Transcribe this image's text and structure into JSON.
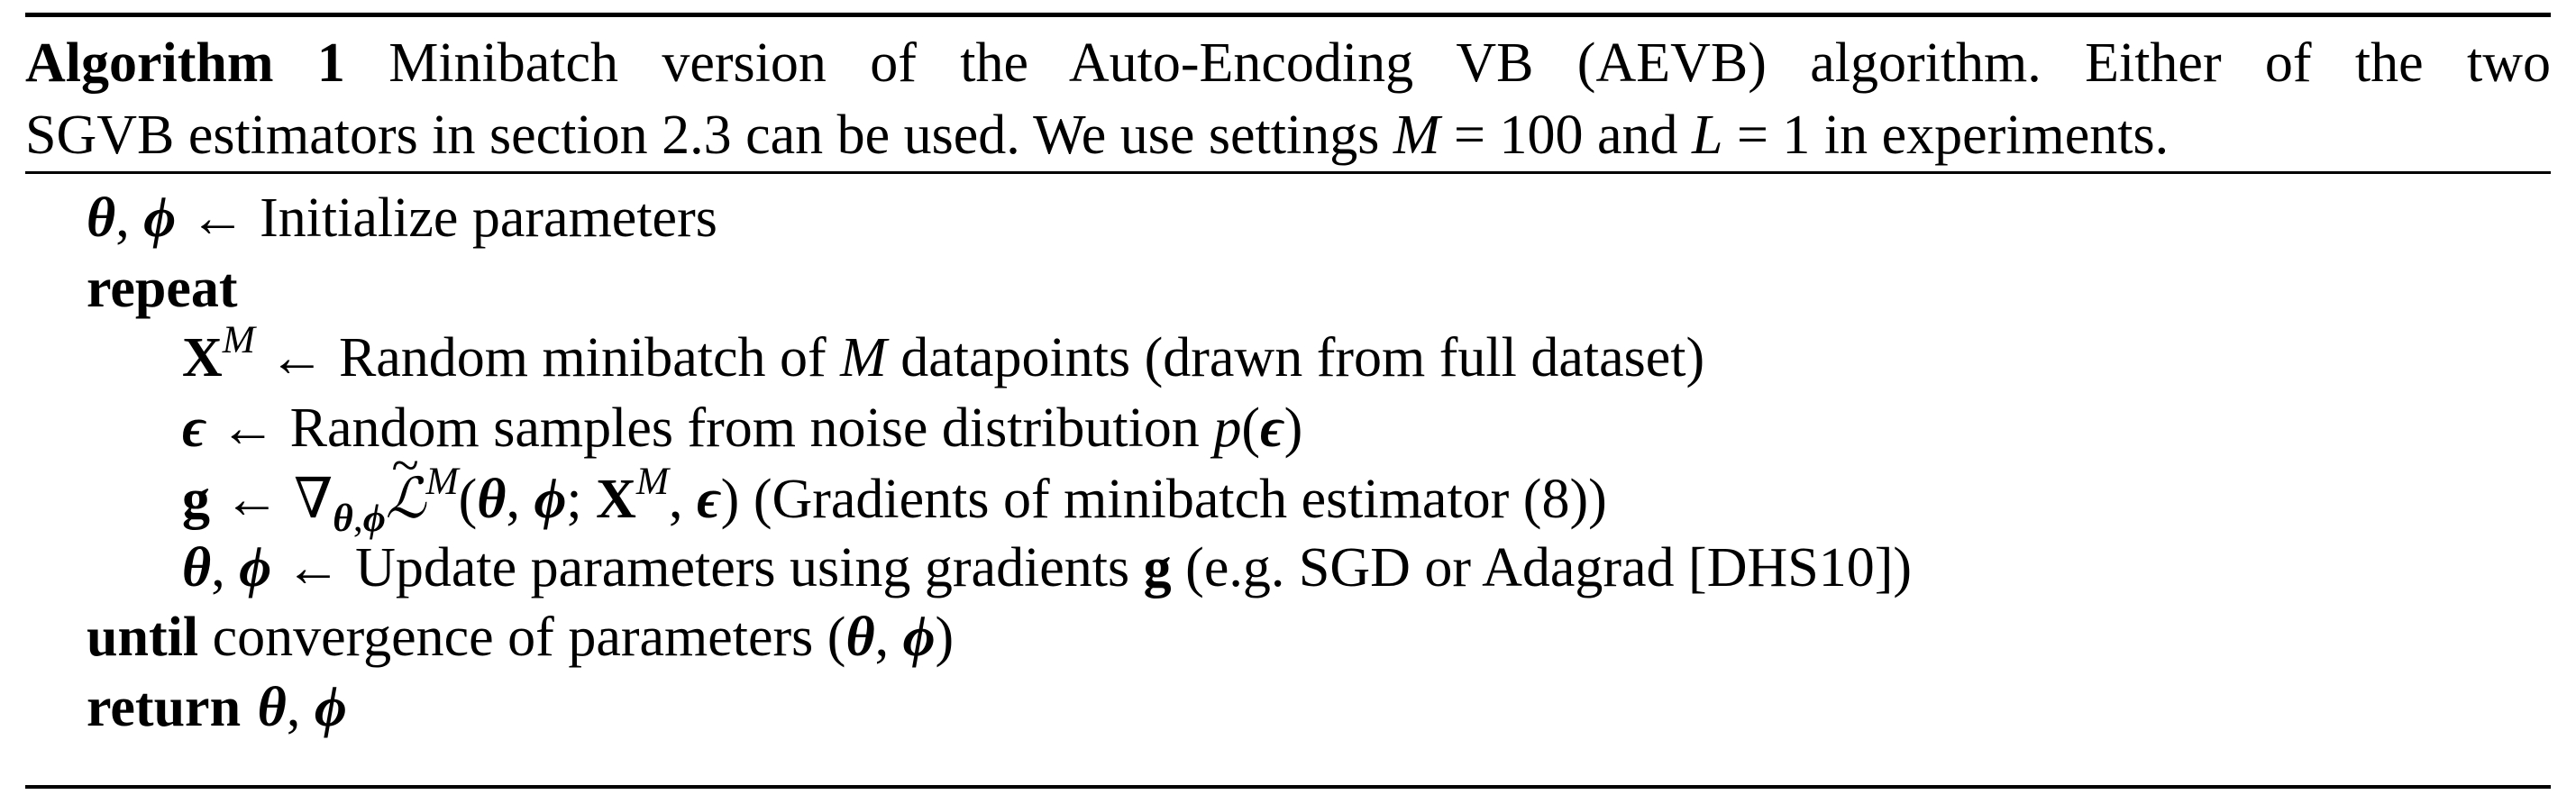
{
  "algorithm": {
    "label": "Algorithm 1",
    "caption_line1": "Minibatch version of the Auto-Encoding VB (AEVB) algorithm.  Either of the two",
    "caption_line2_prefix": "SGVB estimators in section 2.3 can be used. We use settings ",
    "caption_M": "M",
    "caption_eq1": " = 100 and ",
    "caption_L": "L",
    "caption_eq2": " = 1 in experiments."
  },
  "steps": {
    "init": {
      "lhs_theta": "θ",
      "lhs_sep": ", ",
      "lhs_phi": "ϕ",
      "arrow": " ← ",
      "text": "Initialize parameters"
    },
    "repeat_kw": "repeat",
    "minibatch": {
      "var": "X",
      "var_sup": "M",
      "arrow": " ← ",
      "text1": "Random minibatch of ",
      "m": "M",
      "text2": " datapoints (drawn from full dataset)"
    },
    "noise": {
      "var": "ϵ",
      "arrow": " ← ",
      "text": "Random samples from noise distribution ",
      "p": "p",
      "open": "(",
      "eps": "ϵ",
      "close": ")"
    },
    "gradient": {
      "var": "g",
      "arrow": " ← ",
      "nabla": "∇",
      "sub_theta": "θ",
      "sub_sep": ",",
      "sub_phi": "ϕ",
      "tilde": "~",
      "L": "ℒ",
      "L_sup": "M",
      "open": "(",
      "theta": "θ",
      "sep1": ", ",
      "phi": "ϕ",
      "semi": "; ",
      "X": "X",
      "X_sup": "M",
      "sep2": ", ",
      "eps": "ϵ",
      "close": ")",
      "text": " (Gradients of minibatch estimator (8))"
    },
    "update": {
      "lhs_theta": "θ",
      "lhs_sep": ", ",
      "lhs_phi": "ϕ",
      "arrow": " ← ",
      "text1": "Update parameters using gradients ",
      "g": "g",
      "text2": " (e.g. SGD or Adagrad [DHS10])"
    },
    "until": {
      "kw": "until",
      "text": " convergence of parameters ",
      "open": "(",
      "theta": "θ",
      "sep": ", ",
      "phi": "ϕ",
      "close": ")"
    },
    "return": {
      "kw": "return",
      "theta": "θ",
      "sep": ", ",
      "phi": "ϕ"
    }
  }
}
